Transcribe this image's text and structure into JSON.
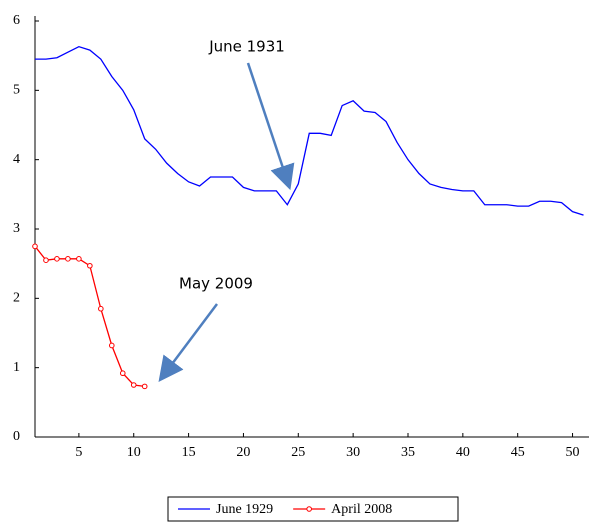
{
  "chart_data": {
    "type": "line",
    "xlim": [
      1,
      51.5
    ],
    "xticks": [
      5,
      10,
      15,
      20,
      25,
      30,
      35,
      40,
      45,
      50
    ],
    "ylim": [
      0,
      6
    ],
    "yticks": [
      0,
      1,
      2,
      3,
      4,
      5,
      6
    ],
    "series": [
      {
        "name": "June 1929",
        "color": "#0000ff",
        "markers": false,
        "x": [
          1,
          2,
          3,
          4,
          5,
          6,
          7,
          8,
          9,
          10,
          11,
          12,
          13,
          14,
          15,
          16,
          17,
          18,
          19,
          20,
          21,
          22,
          23,
          24,
          25,
          26,
          27,
          28,
          29,
          30,
          31,
          32,
          33,
          34,
          35,
          36,
          37,
          38,
          39,
          40,
          41,
          42,
          43,
          44,
          45,
          46,
          47,
          48,
          49,
          50,
          51
        ],
        "values": [
          5.45,
          5.45,
          5.47,
          5.55,
          5.63,
          5.58,
          5.45,
          5.2,
          5.0,
          4.72,
          4.3,
          4.15,
          3.95,
          3.8,
          3.68,
          3.62,
          3.75,
          3.75,
          3.75,
          3.6,
          3.55,
          3.55,
          3.55,
          3.35,
          3.65,
          4.38,
          4.38,
          4.35,
          4.78,
          4.85,
          4.7,
          4.68,
          4.55,
          4.25,
          4.0,
          3.8,
          3.65,
          3.6,
          3.57,
          3.55,
          3.55,
          3.35,
          3.35,
          3.35,
          3.33,
          3.33,
          3.4,
          3.4,
          3.38,
          3.25,
          3.2
        ]
      },
      {
        "name": "April 2008",
        "color": "#ff0000",
        "markers": true,
        "x": [
          1,
          2,
          3,
          4,
          5,
          6,
          7,
          8,
          9,
          10,
          11
        ],
        "values": [
          2.75,
          2.55,
          2.57,
          2.57,
          2.57,
          2.47,
          1.85,
          1.32,
          0.92,
          0.75,
          0.73
        ]
      }
    ],
    "annotations": [
      "June 1931",
      "May 2009"
    ],
    "legend": "bottom"
  }
}
